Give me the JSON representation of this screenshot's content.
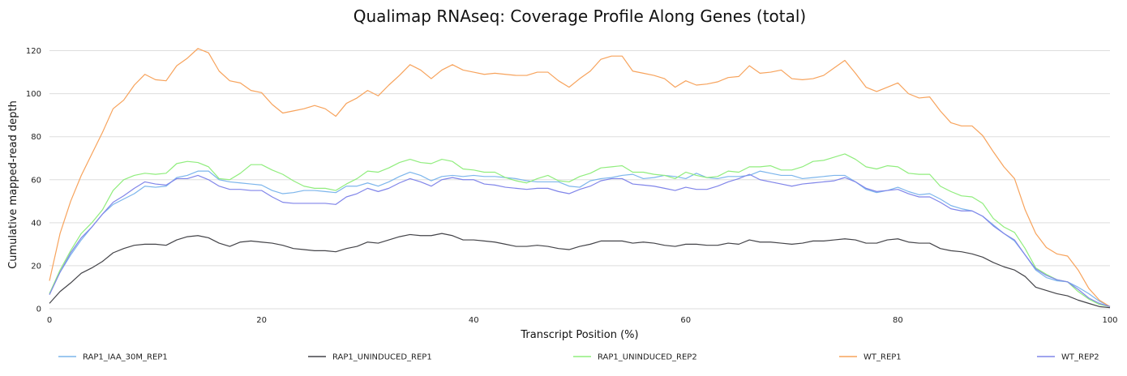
{
  "chart_data": {
    "type": "line",
    "title": "Qualimap RNAseq: Coverage Profile Along Genes (total)",
    "xlabel": "Transcript Position (%)",
    "ylabel": "Cumulative mapped-read depth",
    "xlim": [
      0,
      100
    ],
    "ylim": [
      0,
      130
    ],
    "x_ticks": [
      0,
      20,
      40,
      60,
      80,
      100
    ],
    "y_ticks": [
      0,
      20,
      40,
      60,
      80,
      100,
      120
    ],
    "grid": "horizontal",
    "legend_position": "bottom",
    "x": [
      0,
      1,
      2,
      3,
      4,
      5,
      6,
      7,
      8,
      9,
      10,
      11,
      12,
      13,
      14,
      15,
      16,
      17,
      18,
      19,
      20,
      21,
      22,
      23,
      24,
      25,
      26,
      27,
      28,
      29,
      30,
      31,
      32,
      33,
      34,
      35,
      36,
      37,
      38,
      39,
      40,
      41,
      42,
      43,
      44,
      45,
      46,
      47,
      48,
      49,
      50,
      51,
      52,
      53,
      54,
      55,
      56,
      57,
      58,
      59,
      60,
      61,
      62,
      63,
      64,
      65,
      66,
      67,
      68,
      69,
      70,
      71,
      72,
      73,
      74,
      75,
      76,
      77,
      78,
      79,
      80,
      81,
      82,
      83,
      84,
      85,
      86,
      87,
      88,
      89,
      90,
      91,
      92,
      93,
      94,
      95,
      96,
      97,
      98,
      99,
      100
    ],
    "series": [
      {
        "name": "RAP1_IAA_30M_REP1",
        "color": "#7cb5ec",
        "values": [
          7,
          17,
          25,
          32,
          38,
          44,
          48.5,
          51,
          53.5,
          57,
          56.5,
          57,
          61,
          62,
          64,
          64,
          60,
          59,
          58.5,
          58,
          57.5,
          55,
          53.5,
          54,
          55,
          55,
          54.5,
          54,
          57,
          57,
          58.5,
          57,
          59,
          61.5,
          63.5,
          62,
          59.5,
          61.5,
          62,
          61.5,
          62,
          61.5,
          61.5,
          61,
          60.5,
          59.5,
          59,
          59,
          59,
          57,
          56.5,
          59.5,
          60.5,
          61,
          62,
          62.5,
          60.5,
          61,
          62,
          61.5,
          60.5,
          63,
          61,
          60.5,
          61.5,
          61.5,
          62,
          64,
          63,
          62,
          62,
          60.5,
          61,
          61.5,
          62,
          62,
          59,
          55.5,
          54,
          55,
          56.5,
          54.5,
          53,
          53.5,
          51,
          48,
          46.5,
          45.5,
          43,
          39,
          35,
          31.5,
          25,
          18,
          14.5,
          13,
          12.5,
          10,
          7,
          3.5,
          1
        ]
      },
      {
        "name": "RAP1_UNINDUCED_REP1",
        "color": "#434348",
        "values": [
          2.5,
          8,
          12,
          16.5,
          19,
          22,
          26,
          28,
          29.5,
          30,
          30,
          29.5,
          32,
          33.5,
          34,
          33,
          30.5,
          29,
          31,
          31.5,
          31,
          30.5,
          29.5,
          28,
          27.5,
          27,
          27,
          26.5,
          28,
          29,
          31,
          30.5,
          32,
          33.5,
          34.5,
          34,
          34,
          35,
          34,
          32,
          32,
          31.5,
          31,
          30,
          29,
          29,
          29.5,
          29,
          28,
          27.5,
          29,
          30,
          31.5,
          31.5,
          31.5,
          30.5,
          31,
          30.5,
          29.5,
          29,
          30,
          30,
          29.5,
          29.5,
          30.5,
          30,
          32,
          31,
          31,
          30.5,
          30,
          30.5,
          31.5,
          31.5,
          32,
          32.5,
          32,
          30.5,
          30.5,
          32,
          32.5,
          31,
          30.5,
          30.5,
          28,
          27,
          26.5,
          25.5,
          24,
          21.5,
          19.5,
          18,
          15,
          10,
          8.5,
          7,
          6,
          4,
          2.5,
          1,
          0.5
        ]
      },
      {
        "name": "RAP1_UNINDUCED_REP2",
        "color": "#90ed7d",
        "values": [
          7,
          18,
          27,
          35,
          40,
          46,
          55,
          60,
          62,
          63,
          62.5,
          63,
          67.5,
          68.5,
          68,
          66,
          60.5,
          60,
          63,
          67,
          67,
          64.5,
          62.5,
          59.5,
          57,
          56,
          56,
          55,
          58,
          60.5,
          64,
          63.5,
          65.5,
          68,
          69.5,
          68,
          67.5,
          69.5,
          68.5,
          65,
          64.5,
          63.5,
          63.5,
          61,
          59.5,
          58.5,
          60.5,
          62,
          59.5,
          59,
          61.5,
          63,
          65.5,
          66,
          66.5,
          63.5,
          63.5,
          62.5,
          62,
          60.5,
          63.5,
          62,
          61,
          61.5,
          64,
          63.5,
          66,
          66,
          66.5,
          64.5,
          64.5,
          66,
          68.5,
          69,
          70.5,
          72,
          69.5,
          66,
          65,
          66.5,
          66,
          63,
          62.5,
          62.5,
          57,
          54.5,
          52.5,
          52,
          49,
          42,
          38,
          35.5,
          28,
          19,
          16,
          13.5,
          12.5,
          8,
          4.5,
          2,
          1
        ]
      },
      {
        "name": "WT_REP1",
        "color": "#f7a35c",
        "values": [
          13,
          35,
          50,
          62,
          72,
          82,
          93,
          97,
          104,
          109,
          106.5,
          106,
          113,
          116.5,
          121,
          119,
          110.5,
          106,
          105,
          101.5,
          100.5,
          95,
          91,
          92,
          93,
          94.5,
          93,
          89.5,
          95.5,
          98,
          101.5,
          99,
          104,
          108.5,
          113.5,
          111,
          107,
          111,
          113.5,
          111,
          110,
          109,
          109.5,
          109,
          108.5,
          108.5,
          110,
          110,
          106,
          103,
          107,
          110.5,
          116,
          117.5,
          117.5,
          110.5,
          109.5,
          108.5,
          107,
          103,
          106,
          104,
          104.5,
          105.5,
          107.5,
          108,
          113,
          109.5,
          110,
          111,
          107,
          106.5,
          107,
          108.5,
          112,
          115.5,
          109.5,
          103,
          101,
          103,
          105,
          100,
          98,
          98.5,
          92,
          86.5,
          85,
          85,
          80.5,
          73,
          66,
          60.5,
          46,
          35,
          28.5,
          25.5,
          24.5,
          18,
          9.5,
          4,
          1
        ]
      },
      {
        "name": "WT_REP2",
        "color": "#8085e9",
        "values": [
          6.5,
          17,
          26,
          33,
          38,
          44,
          49.5,
          52.5,
          56,
          59,
          58,
          57.5,
          60.5,
          60.5,
          62,
          60,
          57,
          55.5,
          55.5,
          55,
          55,
          52,
          49.5,
          49,
          49,
          49,
          49,
          48.5,
          52,
          53.5,
          56,
          54.5,
          56,
          58.5,
          60.5,
          59,
          57,
          60,
          61,
          60,
          60,
          58,
          57.5,
          56.5,
          56,
          55.5,
          56,
          56,
          54.5,
          53.5,
          55.5,
          57,
          59.5,
          60.5,
          60.5,
          58,
          57.5,
          57,
          56,
          55,
          56.5,
          55.5,
          55.5,
          57,
          59,
          60.5,
          62.5,
          60,
          59,
          58,
          57,
          58,
          58.5,
          59,
          59.5,
          61,
          59,
          56,
          54.5,
          55,
          55.5,
          53.5,
          52,
          52,
          49.5,
          46.5,
          45.5,
          45.5,
          43,
          38.5,
          35,
          32,
          25,
          18.5,
          15.5,
          13.5,
          12.5,
          9,
          5,
          2.5,
          1
        ]
      }
    ]
  }
}
